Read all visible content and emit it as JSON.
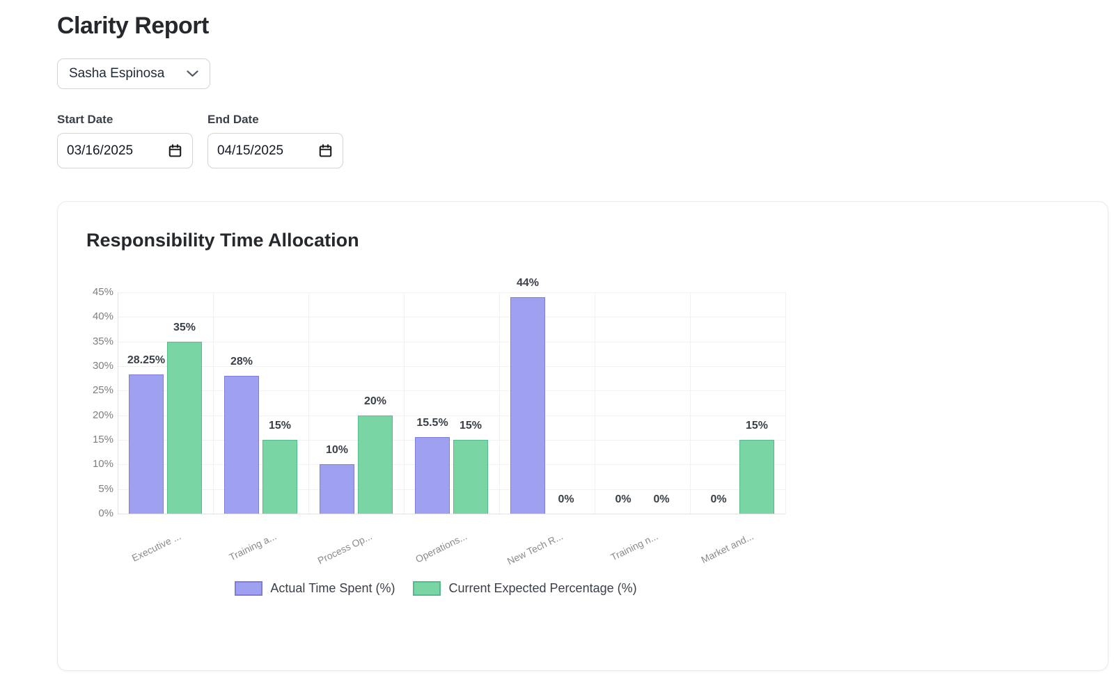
{
  "page": {
    "title": "Clarity Report"
  },
  "filters": {
    "person_select": {
      "value": "Sasha Espinosa"
    },
    "start_date": {
      "label": "Start Date",
      "value": "03/16/2025"
    },
    "end_date": {
      "label": "End Date",
      "value": "04/15/2025"
    }
  },
  "card": {
    "title": "Responsibility Time Allocation"
  },
  "chart_data": {
    "type": "bar",
    "title": "Responsibility Time Allocation",
    "categories": [
      "Executive ...",
      "Training a...",
      "Process Op...",
      "Operations...",
      "New Tech R...",
      "Training n...",
      "Market and..."
    ],
    "series": [
      {
        "name": "Actual Time Spent (%)",
        "fill": "#9fa0ef",
        "border": "#7d7edc",
        "values": [
          28.25,
          28,
          10,
          15.5,
          44,
          0,
          0
        ]
      },
      {
        "name": "Current Expected Percentage (%)",
        "fill": "#79d5a3",
        "border": "#52bd89",
        "values": [
          35,
          15,
          20,
          15,
          0,
          0,
          15
        ]
      }
    ],
    "ylim": [
      0,
      45
    ],
    "ytick_step": 5,
    "ytick_suffix": "%",
    "grid": true,
    "legend_position": "bottom"
  }
}
